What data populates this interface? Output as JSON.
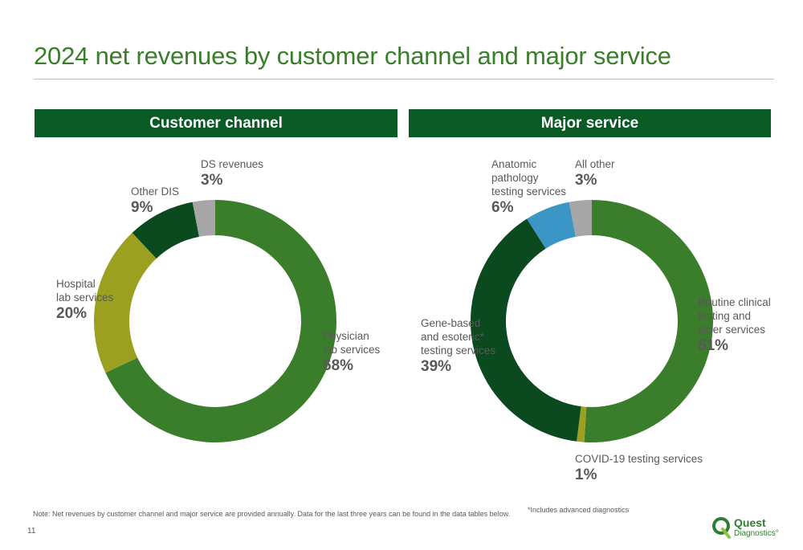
{
  "title": "2024 net revenues by customer channel and major service",
  "note": "Note: Net revenues by customer channel and major service are provided annually. Data for the last three years can be found in the data tables below.",
  "footnote": "*Includes advanced diagnostics",
  "page_number": "11",
  "logo": {
    "name": "Quest",
    "sub": "Diagnostics°"
  },
  "colors": {
    "title": "#3a7d2a",
    "header_bg": "#0a5a26",
    "physician": "#3a7d2a",
    "hospital": "#9ba020",
    "other_dis": "#0a4a1e",
    "ds": "#a6a6a6",
    "routine": "#3a7d2a",
    "covid": "#9ba020",
    "gene": "#0a4a1e",
    "anatomic": "#3a96c4",
    "all_other": "#a6a6a6"
  },
  "chart_data": [
    {
      "type": "pie",
      "title": "Customer channel",
      "slices": [
        {
          "name": "Physician\nlab services",
          "value": 68,
          "label": "68%",
          "color": "#3a7d2a"
        },
        {
          "name": "Hospital\nlab services",
          "value": 20,
          "label": "20%",
          "color": "#9ba020"
        },
        {
          "name": "Other DIS",
          "value": 9,
          "label": "9%",
          "color": "#0a4a1e"
        },
        {
          "name": "DS revenues",
          "value": 3,
          "label": "3%",
          "color": "#a6a6a6"
        }
      ]
    },
    {
      "type": "pie",
      "title": "Major service",
      "slices": [
        {
          "name": "Routine clinical\ntesting and\nother services",
          "value": 51,
          "label": "51%",
          "color": "#3a7d2a"
        },
        {
          "name": "COVID-19 testing services",
          "value": 1,
          "label": "1%",
          "color": "#9ba020"
        },
        {
          "name": "Gene-based\nand esoteric*\ntesting services",
          "value": 39,
          "label": "39%",
          "color": "#0a4a1e"
        },
        {
          "name": "Anatomic\npathology\ntesting services",
          "value": 6,
          "label": "6%",
          "color": "#3a96c4"
        },
        {
          "name": "All other",
          "value": 3,
          "label": "3%",
          "color": "#a6a6a6"
        }
      ]
    }
  ]
}
